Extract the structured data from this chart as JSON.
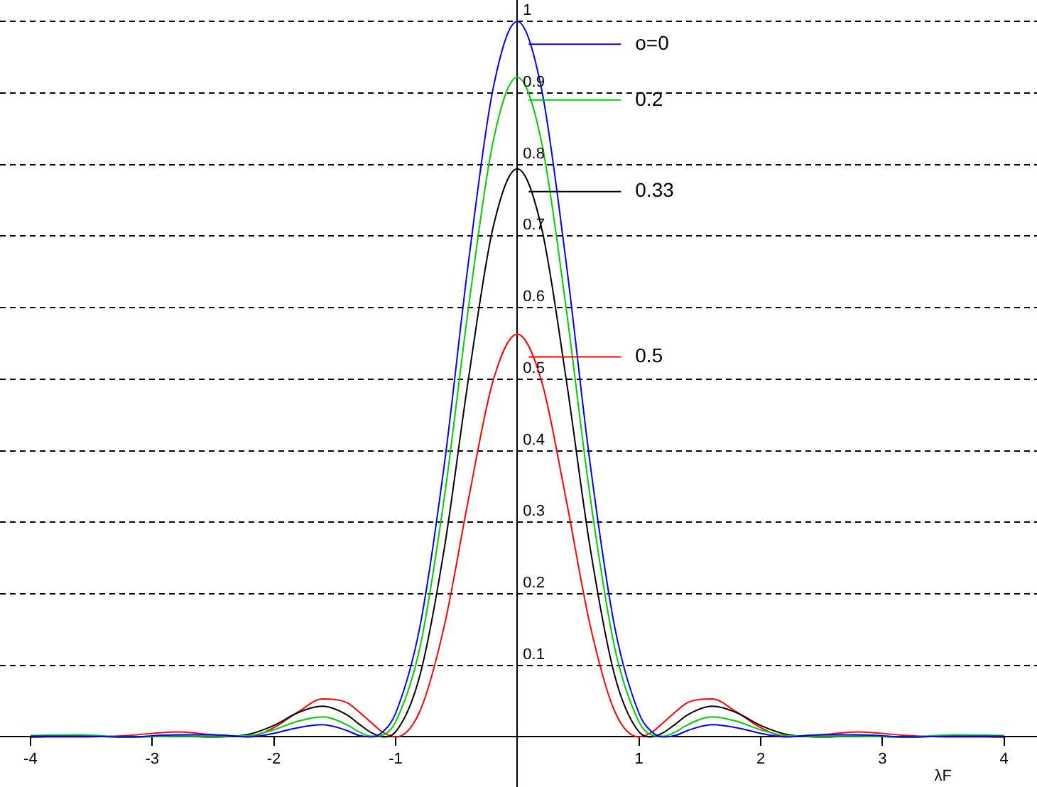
{
  "chart_data": {
    "type": "line",
    "xlabel": "λF",
    "x": [
      -4,
      -3.6,
      -3.2,
      -2.8,
      -2.5,
      -2.2,
      -2,
      -1.8,
      -1.6,
      -1.4,
      -1.3,
      -1.2,
      -1.1,
      -1,
      -0.8,
      -0.6,
      -0.4,
      -0.2,
      0,
      0.2,
      0.4,
      0.6,
      0.8,
      1,
      1.1,
      1.2,
      1.3,
      1.4,
      1.6,
      1.8,
      2,
      2.2,
      2.5,
      2.8,
      3.2,
      3.6,
      4
    ],
    "series": [
      {
        "name": "o=0",
        "color": "#0000ff",
        "values": [
          0.001,
          0.001,
          0,
          0.003,
          0.003,
          0,
          0.005,
          0.013,
          0.017,
          0.009,
          0.002,
          0,
          0.008,
          0.033,
          0.154,
          0.38,
          0.665,
          0.905,
          1,
          0.905,
          0.665,
          0.38,
          0.154,
          0.033,
          0.008,
          0,
          0.002,
          0.009,
          0.017,
          0.013,
          0.005,
          0,
          0.003,
          0.003,
          0,
          0.001,
          0.001
        ]
      },
      {
        "name": "0.2",
        "color": "#00d000",
        "values": [
          0.002,
          0.003,
          0,
          0.001,
          0.001,
          0.002,
          0.01,
          0.022,
          0.028,
          0.017,
          0.007,
          0.001,
          0.003,
          0.021,
          0.125,
          0.334,
          0.601,
          0.831,
          0.922,
          0.831,
          0.601,
          0.334,
          0.125,
          0.021,
          0.003,
          0.001,
          0.007,
          0.017,
          0.028,
          0.022,
          0.01,
          0.002,
          0.001,
          0.001,
          0,
          0.003,
          0.002
        ]
      },
      {
        "name": "0.33",
        "color": "#000000",
        "values": [
          0,
          0.001,
          0,
          0.001,
          0,
          0.004,
          0.016,
          0.034,
          0.043,
          0.031,
          0.018,
          0.006,
          0,
          0.007,
          0.086,
          0.263,
          0.502,
          0.711,
          0.794,
          0.711,
          0.502,
          0.263,
          0.086,
          0.007,
          0,
          0.006,
          0.018,
          0.031,
          0.043,
          0.034,
          0.016,
          0.004,
          0,
          0.001,
          0,
          0.001,
          0
        ]
      },
      {
        "name": "0.5",
        "color": "#ff0000",
        "values": [
          0,
          0,
          0.002,
          0.007,
          0.003,
          0.001,
          0.013,
          0.035,
          0.053,
          0.048,
          0.035,
          0.02,
          0.006,
          0,
          0.036,
          0.155,
          0.333,
          0.497,
          0.563,
          0.497,
          0.333,
          0.155,
          0.036,
          0,
          0.006,
          0.02,
          0.035,
          0.048,
          0.053,
          0.035,
          0.013,
          0.001,
          0.003,
          0.007,
          0.002,
          0,
          0
        ]
      }
    ],
    "xlim": [
      -4.25,
      4.27
    ],
    "ylim": [
      -0.07,
      1.03
    ],
    "xticks": [
      -4,
      -3,
      -2,
      -1,
      1,
      2,
      3,
      4
    ],
    "yticks": [
      0.1,
      0.2,
      0.3,
      0.4,
      0.5,
      0.6,
      0.7,
      0.8,
      0.9,
      1
    ],
    "grid": "y",
    "legend": "top right",
    "marker": "none"
  }
}
